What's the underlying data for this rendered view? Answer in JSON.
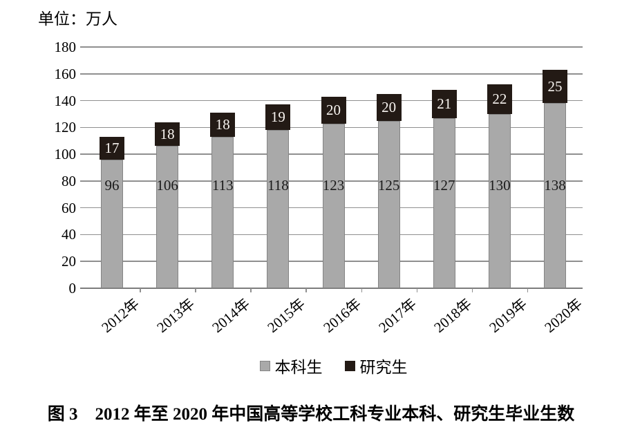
{
  "unit_label": "单位：万人",
  "caption": "图 3　2012 年至 2020 年中国高等学校工科专业本科、研究生毕业生数",
  "colors": {
    "undergrad_fill": "#a9a9a9",
    "undergrad_border": "#848484",
    "grad_fill": "#231a15",
    "gridline": "#8f8f8f",
    "axis_line": "#7c7c7c",
    "bar_value_text": "#1a1a1a",
    "cap_value_text": "#f7f3ef"
  },
  "chart_data": {
    "type": "bar",
    "stacked": true,
    "title": "",
    "xlabel": "",
    "ylabel": "单位：万人",
    "categories": [
      "2012年",
      "2013年",
      "2014年",
      "2015年",
      "2016年",
      "2017年",
      "2018年",
      "2019年",
      "2020年"
    ],
    "series": [
      {
        "key": "undergraduate",
        "name": "本科生",
        "color": "#a9a9a9",
        "values": [
          96,
          106,
          113,
          118,
          123,
          125,
          127,
          130,
          138
        ]
      },
      {
        "key": "graduate",
        "name": "研究生",
        "color": "#231a15",
        "values": [
          17,
          18,
          18,
          19,
          20,
          20,
          21,
          22,
          25
        ]
      }
    ],
    "ylim": [
      0,
      180
    ],
    "yticks": [
      0,
      20,
      40,
      60,
      80,
      100,
      120,
      140,
      160,
      180
    ],
    "grid": true,
    "legend_position": "bottom"
  }
}
